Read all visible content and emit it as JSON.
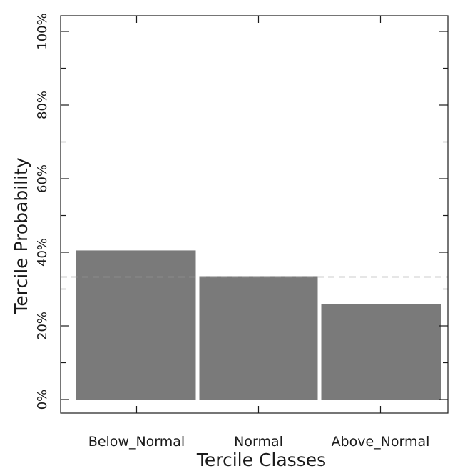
{
  "chart_data": {
    "type": "bar",
    "categories": [
      "Below_Normal",
      "Normal",
      "Above_Normal"
    ],
    "values": [
      40.5,
      33.5,
      26
    ],
    "xlabel": "Tercile Classes",
    "ylabel": "Tercile Probability",
    "ylim": [
      0,
      100
    ],
    "yticks": [
      0,
      20,
      40,
      60,
      80,
      100
    ],
    "ytick_labels": [
      "0%",
      "20%",
      "40%",
      "60%",
      "80%",
      "100%"
    ],
    "reference_line": 33.3,
    "bar_color": "#7a7a7a",
    "reference_line_color": "#9a9a9a",
    "grid": false
  }
}
